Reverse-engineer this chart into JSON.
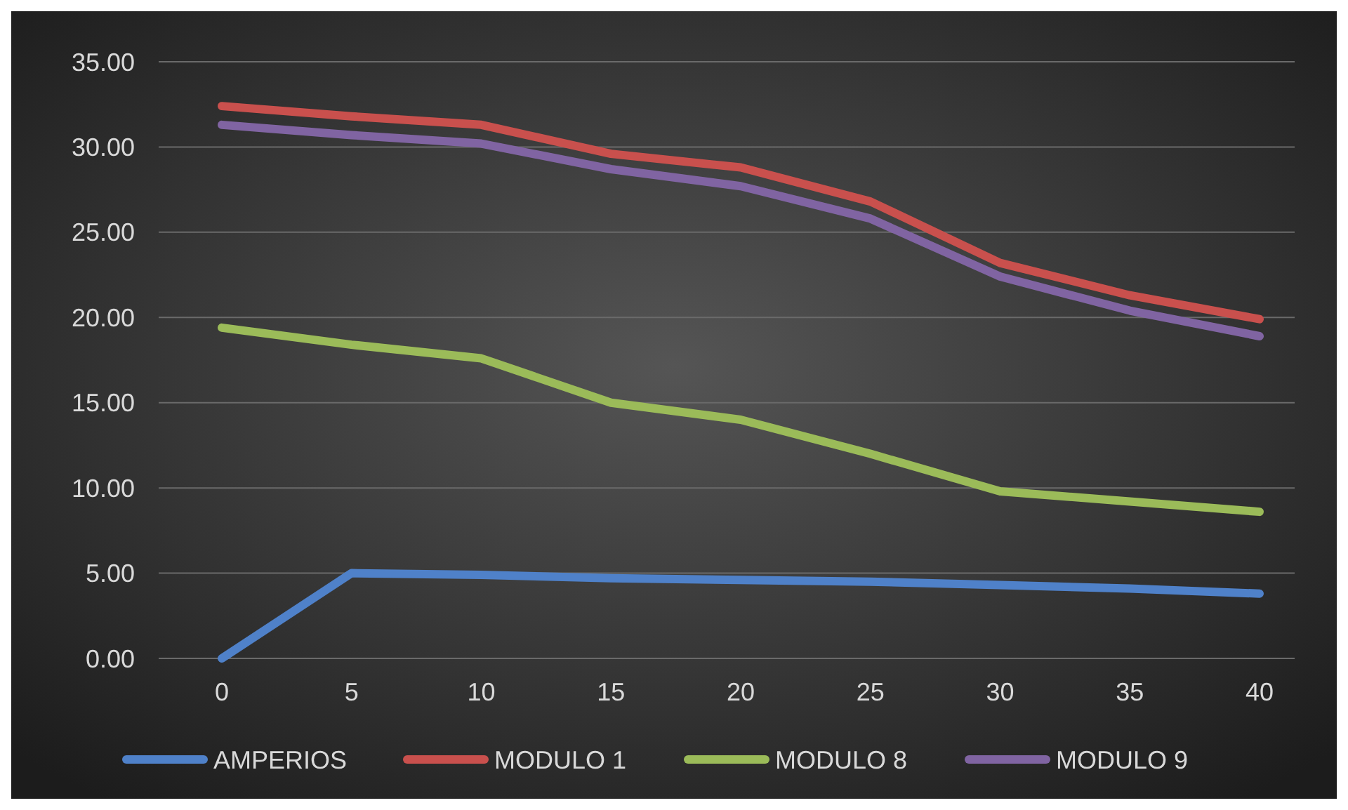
{
  "chart_data": {
    "type": "line",
    "categories": [
      "0",
      "5",
      "10",
      "15",
      "20",
      "25",
      "30",
      "35",
      "40"
    ],
    "series": [
      {
        "name": "AMPERIOS",
        "color": "#4f81c9",
        "values": [
          0,
          5.0,
          4.9,
          4.7,
          4.6,
          4.5,
          4.3,
          4.1,
          3.8
        ]
      },
      {
        "name": "MODULO 1",
        "color": "#c9504d",
        "values": [
          32.4,
          31.8,
          31.3,
          29.6,
          28.8,
          26.8,
          23.2,
          21.3,
          19.9
        ]
      },
      {
        "name": "MODULO 8",
        "color": "#9bbb59",
        "values": [
          19.4,
          18.4,
          17.6,
          15.0,
          14.0,
          12.0,
          9.8,
          9.2,
          8.6
        ]
      },
      {
        "name": "MODULO 9",
        "color": "#8064a2",
        "values": [
          31.3,
          30.7,
          30.2,
          28.7,
          27.7,
          25.8,
          22.4,
          20.4,
          18.9
        ]
      }
    ],
    "ylim": [
      0,
      35
    ],
    "yticks": [
      {
        "value": 0,
        "label": "0.00"
      },
      {
        "value": 5,
        "label": "5.00"
      },
      {
        "value": 10,
        "label": "10.00"
      },
      {
        "value": 15,
        "label": "15.00"
      },
      {
        "value": 20,
        "label": "20.00"
      },
      {
        "value": 25,
        "label": "25.00"
      },
      {
        "value": 30,
        "label": "30.00"
      },
      {
        "value": 35,
        "label": "35.00"
      }
    ],
    "grid": "y",
    "legend": "bottom",
    "marker": "none",
    "line_style": "solid"
  }
}
